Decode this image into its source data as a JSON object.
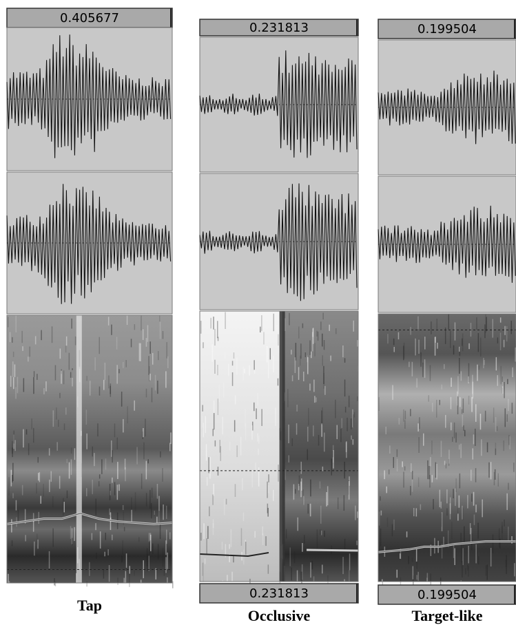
{
  "panels": [
    {
      "top_label": "0.405677",
      "caption": "Tap"
    },
    {
      "top_label": "0.231813",
      "bottom_label": "0.231813",
      "caption": "Occlusive"
    },
    {
      "top_label": "0.199504",
      "bottom_label": "0.199504",
      "caption": "Target-like"
    }
  ]
}
